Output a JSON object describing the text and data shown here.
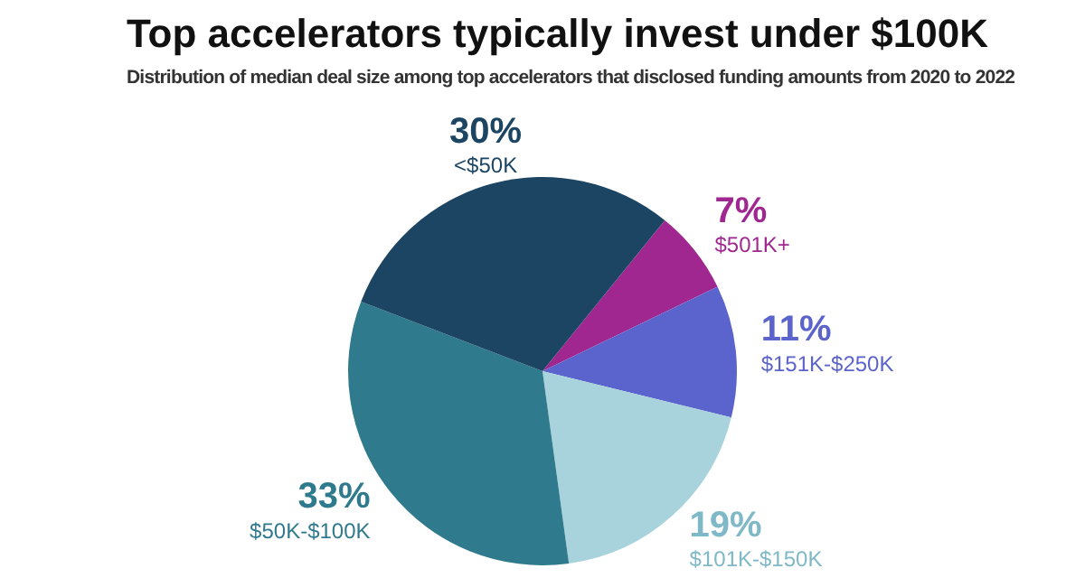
{
  "chart_data": {
    "type": "pie",
    "title": "Top accelerators typically invest under $100K",
    "subtitle": "Distribution of median deal size among top accelerators that disclosed funding amounts from 2020 to 2022",
    "categories": [
      "$501K+",
      "$151K-$250K",
      "$101K-$150K",
      "$50K-$100K",
      "<$50K"
    ],
    "values": [
      7,
      11,
      19,
      33,
      30
    ],
    "value_labels": [
      "7%",
      "11%",
      "19%",
      "33%",
      "30%"
    ],
    "colors": [
      "#a0278f",
      "#5b63cc",
      "#a9d3dc",
      "#2f7a8c",
      "#1c4563"
    ],
    "legend": false
  }
}
